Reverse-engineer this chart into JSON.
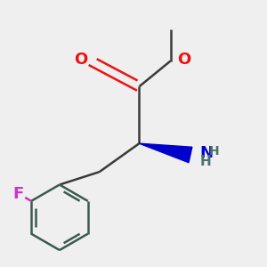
{
  "background_color": "#efefef",
  "bond_color": "#3a3a3a",
  "bond_width": 1.8,
  "ring_bond_color": "#3a5a50",
  "atom_colors": {
    "O": "#ee1111",
    "N": "#0000cc",
    "F": "#cc33cc",
    "H": "#4a7070"
  },
  "font_size": 13,
  "font_size_small": 11,
  "wedge_color": "#0000cc",
  "methyl_color": "#3a3a3a",
  "methyl_O_color": "#ee1111",
  "carbonyl_O_color": "#ee1111"
}
